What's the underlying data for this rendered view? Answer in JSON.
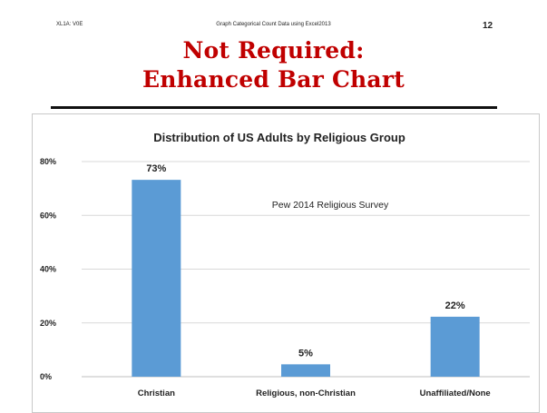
{
  "header": {
    "code": "XL1A: V0E",
    "subject": "Graph Categorical Count Data using Excel2013",
    "page_number": "12"
  },
  "slide_title": {
    "line1": "Not Required:",
    "line2": "Enhanced Bar Chart"
  },
  "colors": {
    "title": "#c00000",
    "bar": "#5b9bd5",
    "grid": "#d9d9d9"
  },
  "chart_data": {
    "type": "bar",
    "title": "Distribution of US Adults by Religious Group",
    "categories": [
      "Christian",
      "Religious, non-Christian",
      "Unaffiliated/None"
    ],
    "values": [
      73.2,
      4.6,
      22.3
    ],
    "data_labels": [
      "73%",
      "5%",
      "22%"
    ],
    "y_ticks": [
      "0%",
      "20%",
      "40%",
      "60%",
      "80%"
    ],
    "ylim": [
      0,
      80
    ],
    "grid": true,
    "annotation": "Pew 2014 Religious Survey",
    "xlabel": "",
    "ylabel": ""
  }
}
